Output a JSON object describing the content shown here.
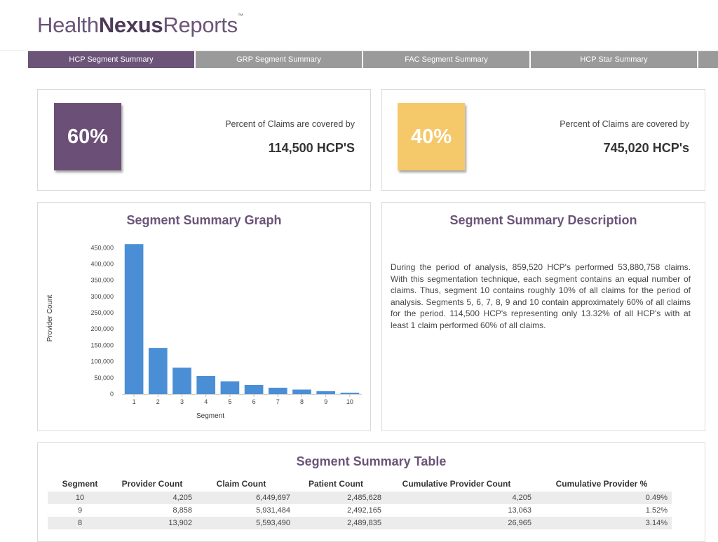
{
  "brand": {
    "part1": "Health",
    "part2": "Nexus",
    "part3": "Reports",
    "tm": "™"
  },
  "tabs": [
    {
      "label": "HCP Segment Summary"
    },
    {
      "label": "GRP Segment Summary"
    },
    {
      "label": "FAC Segment Summary"
    },
    {
      "label": "HCP Star Summary"
    }
  ],
  "kpis": [
    {
      "percent": "60%",
      "label": "Percent of Claims are covered by",
      "value": "114,500 HCP'S",
      "color": "#6b4f76"
    },
    {
      "percent": "40%",
      "label": "Percent of Claims are covered by",
      "value": "745,020 HCP's",
      "color": "#f5c96a"
    }
  ],
  "graph": {
    "title": "Segment Summary Graph"
  },
  "description": {
    "title": "Segment Summary Description",
    "text": "During the period of analysis, 859,520 HCP's performed 53,880,758 claims. With this segmentation technique, each segment contains an equal number of claims. Thus, segment 10 contains roughly 10% of all claims for the period of analysis. Segments 5, 6, 7, 8, 9 and 10 contain approximately 60% of all claims for the period. 114,500 HCP's representing only 13.32% of all HCP's with at least 1 claim performed 60% of all claims."
  },
  "chart_data": {
    "type": "bar",
    "categories": [
      "1",
      "2",
      "3",
      "4",
      "5",
      "6",
      "7",
      "8",
      "9",
      "10"
    ],
    "values": [
      461000,
      142000,
      81000,
      56000,
      39000,
      28000,
      19500,
      13902,
      8858,
      4205
    ],
    "xlabel": "Segment",
    "ylabel": "Provider Count",
    "ylim": [
      0,
      470000
    ],
    "yticks": [
      0,
      50000,
      100000,
      150000,
      200000,
      250000,
      300000,
      350000,
      400000,
      450000
    ],
    "ytick_labels": [
      "0",
      "50,000",
      "100,000",
      "150,000",
      "200,000",
      "250,000",
      "300,000",
      "350,000",
      "400,000",
      "450,000"
    ],
    "bar_color": "#4a8fd6",
    "grid": false
  },
  "table": {
    "title": "Segment Summary Table",
    "headers": [
      "Segment",
      "Provider Count",
      "Claim Count",
      "Patient Count",
      "Cumulative Provider Count",
      "Cumulative Provider %"
    ],
    "rows": [
      [
        "10",
        "4,205",
        "6,449,697",
        "2,485,628",
        "4,205",
        "0.49%"
      ],
      [
        "9",
        "8,858",
        "5,931,484",
        "2,492,165",
        "13,063",
        "1.52%"
      ],
      [
        "8",
        "13,902",
        "5,593,490",
        "2,489,835",
        "26,965",
        "3.14%"
      ]
    ]
  }
}
